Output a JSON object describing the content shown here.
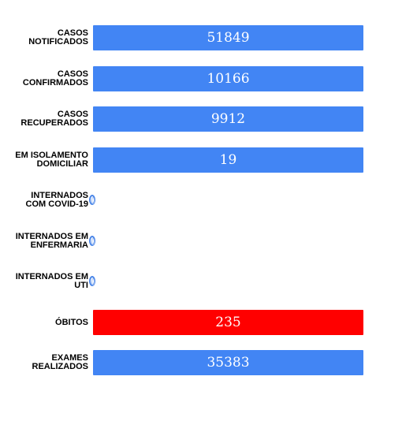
{
  "chart_data": {
    "type": "bar",
    "orientation": "horizontal",
    "categories": [
      [
        "CASOS",
        "NOTIFICADOS"
      ],
      [
        "CASOS",
        "CONFIRMADOS"
      ],
      [
        "CASOS",
        "RECUPERADOS"
      ],
      [
        "EM ISOLAMENTO",
        "DOMICILIAR"
      ],
      [
        "INTERNADOS",
        "COM COVID-19"
      ],
      [
        "INTERNADOS EM",
        "ENFERMARIA"
      ],
      [
        "INTERNADOS EM",
        "UTI"
      ],
      [
        "ÓBITOS"
      ],
      [
        "EXAMES",
        "REALIZADOS"
      ]
    ],
    "values": [
      51849,
      10166,
      9912,
      19,
      0,
      0,
      0,
      235,
      35383
    ],
    "value_labels": [
      "51849",
      "10166",
      "9912",
      "19",
      "0",
      "0",
      "0",
      "235",
      "35383"
    ],
    "bar_colors": [
      "#4285f4",
      "#4285f4",
      "#4285f4",
      "#4285f4",
      "#4285f4",
      "#4285f4",
      "#4285f4",
      "#ff0000",
      "#4285f4"
    ],
    "title": "",
    "xlabel": "",
    "ylabel": "",
    "grid": false,
    "legend": "none"
  }
}
